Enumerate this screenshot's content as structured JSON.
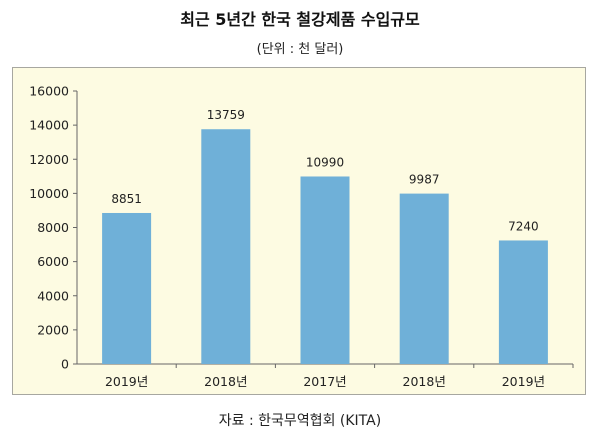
{
  "chart_data": {
    "type": "bar",
    "title": "최근 5년간 한국 철강제품 수입규모",
    "subtitle": "(단위 : 천 달러)",
    "categories": [
      "2019년",
      "2018년",
      "2017년",
      "2018년",
      "2019년"
    ],
    "values": [
      8851,
      13759,
      10990,
      9987,
      7240
    ],
    "ylim": [
      0,
      16000
    ],
    "yticks": [
      0,
      2000,
      4000,
      6000,
      8000,
      10000,
      12000,
      14000,
      16000
    ],
    "grid": false,
    "legend": "none",
    "bar_color": "#6fb0d8",
    "background_color": "#fdfbe2",
    "source": "자료 : 한국무역협회 (KITA)"
  }
}
